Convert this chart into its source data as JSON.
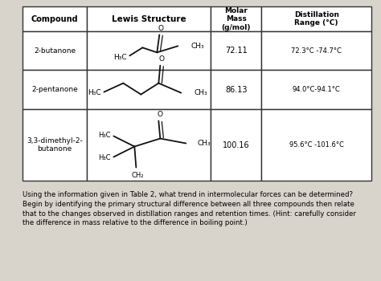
{
  "background_color": "#d8d4cc",
  "table_bg": "#e8e4dc",
  "headers": [
    "Compound",
    "Lewis Structure",
    "Molar\nMass\n(g/mol)",
    "Distillation\nRange (°C)"
  ],
  "compounds": [
    "2-butanone",
    "2-pentanone",
    "3,3-dimethyl-2-\nbutanone"
  ],
  "molar_mass": [
    "72.11",
    "86.13",
    "100.16"
  ],
  "distillation": [
    "72.3°C -74.7°C",
    "94.0°C-94.1°C",
    "95.6°C -101.6°C"
  ],
  "footnote": "Using the information given in Table 2, what trend in intermolecular forces can be determined?\nBegin by identifying the primary structural difference between all three compounds then relate\nthat to the changes observed in distillation ranges and retention times. (Hint: carefully consider\nthe difference in mass relative to the difference in boiling point.)"
}
